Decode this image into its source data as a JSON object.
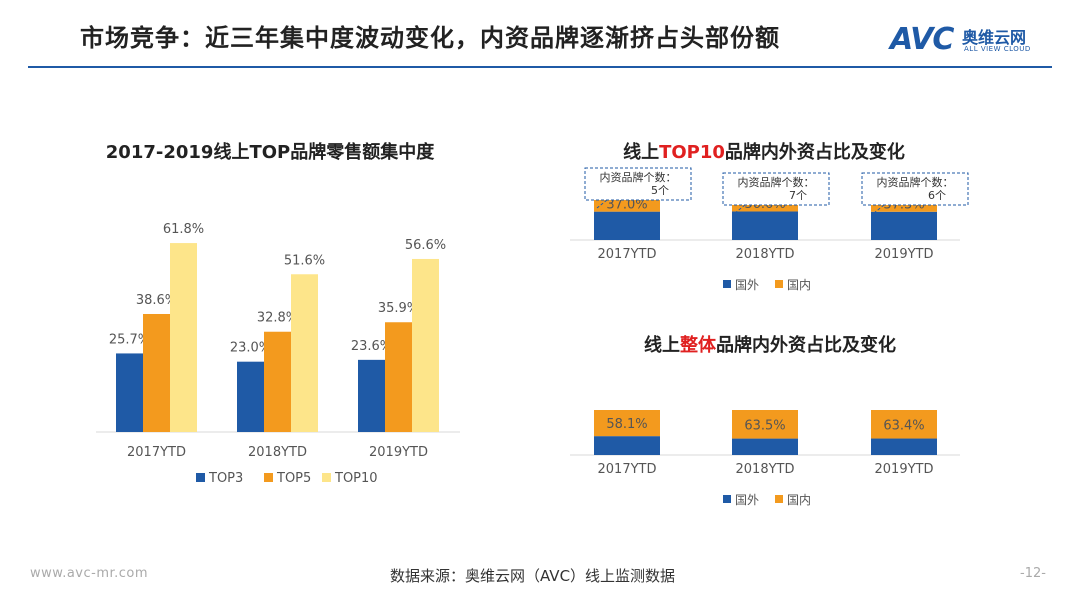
{
  "header": {
    "title": "市场竞争：近三年集中度波动变化，内资品牌逐渐挤占头部份额",
    "logo_mark": "AVC",
    "logo_name": "奥维云网",
    "logo_sub": "ALL VIEW CLOUD"
  },
  "footer": {
    "url": "www.avc-mr.com",
    "source": "数据来源：奥维云网（AVC）线上监测数据",
    "page": "-12-"
  },
  "colors": {
    "top3": "#1f5aa6",
    "top5": "#f39a1e",
    "top10": "#fde58a",
    "foreign": "#1f5aa6",
    "domestic": "#f39a1e"
  },
  "chart_data": [
    {
      "type": "bar",
      "title": "2017-2019线上TOP品牌零售额集中度",
      "categories": [
        "2017YTD",
        "2018YTD",
        "2019YTD"
      ],
      "series": [
        {
          "name": "TOP3",
          "values": [
            25.7,
            23.0,
            23.6
          ]
        },
        {
          "name": "TOP5",
          "values": [
            38.6,
            32.8,
            35.9
          ]
        },
        {
          "name": "TOP10",
          "values": [
            61.8,
            51.6,
            56.6
          ]
        }
      ],
      "unit": "%",
      "ylim": [
        0,
        70
      ],
      "grid": false,
      "legend": "bottom"
    },
    {
      "type": "bar",
      "title_parts": [
        "线上",
        "TOP10",
        "品牌内外资占比及变化"
      ],
      "categories": [
        "2017YTD",
        "2018YTD",
        "2019YTD"
      ],
      "stacked": true,
      "series": [
        {
          "name": "国外",
          "values": [
            63.0,
            63.4,
            62.7
          ]
        },
        {
          "name": "国内",
          "values": [
            37.0,
            36.6,
            37.3
          ]
        }
      ],
      "labeled_series": "国内",
      "unit": "%",
      "callouts": [
        "内资品牌个数：5个",
        "内资品牌个数：7个",
        "内资品牌个数：6个"
      ],
      "legend": "bottom"
    },
    {
      "type": "bar",
      "title_parts": [
        "线上",
        "整体",
        "品牌内外资占比及变化"
      ],
      "categories": [
        "2017YTD",
        "2018YTD",
        "2019YTD"
      ],
      "stacked": true,
      "series": [
        {
          "name": "国外",
          "values": [
            41.9,
            36.5,
            36.6
          ]
        },
        {
          "name": "国内",
          "values": [
            58.1,
            63.5,
            63.4
          ]
        }
      ],
      "labeled_series": "国内",
      "unit": "%",
      "legend": "bottom"
    }
  ]
}
